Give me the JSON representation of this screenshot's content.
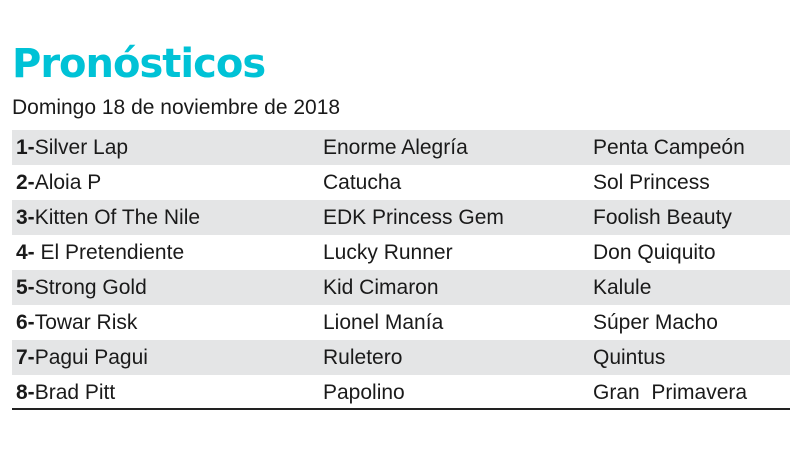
{
  "title": "Pronósticos",
  "subtitle": "Domingo  18 de noviembre de 2018",
  "rows": [
    {
      "num": "1-",
      "horse1": "Silver Lap",
      "horse2": "Enorme Alegría",
      "horse3": "Penta Campeón"
    },
    {
      "num": "2-",
      "horse1": "Aloia P",
      "horse2": "Catucha",
      "horse3": "Sol Princess"
    },
    {
      "num": "3-",
      "horse1": "Kitten Of The Nile",
      "horse2": "EDK Princess Gem",
      "horse3": "Foolish Beauty"
    },
    {
      "num": "4-",
      "horse1": " El Pretendiente",
      "horse2": "Lucky Runner",
      "horse3": "Don Quiquito"
    },
    {
      "num": "5-",
      "horse1": "Strong Gold",
      "horse2": "Kid Cimaron",
      "horse3": "Kalule"
    },
    {
      "num": "6-",
      "horse1": "Towar Risk",
      "horse2": "Lionel Manía",
      "horse3": "Súper Macho"
    },
    {
      "num": "7-",
      "horse1": "Pagui Pagui",
      "horse2": "Ruletero",
      "horse3": "Quintus"
    },
    {
      "num": "8-",
      "horse1": "Brad Pitt",
      "horse2": "Papolino",
      "horse3": "Gran  Primavera"
    }
  ]
}
